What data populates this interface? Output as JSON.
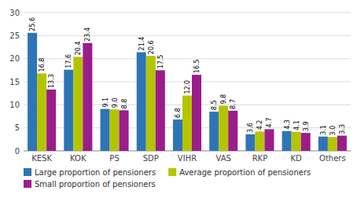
{
  "chart_data": {
    "type": "bar",
    "categories": [
      "KESK",
      "KOK",
      "PS",
      "SDP",
      "VIHR",
      "VAS",
      "RKP",
      "KD",
      "Others"
    ],
    "series": [
      {
        "name": "Large proportion of pensioners",
        "color": "#2e75b6",
        "values": [
          25.6,
          17.6,
          9.1,
          21.4,
          6.8,
          8.5,
          3.6,
          4.3,
          3.1
        ],
        "value_labels": [
          "25.6",
          "17.6",
          "9.1",
          "21.4",
          "6.8",
          "8.5",
          "3.6",
          "4.3",
          "3.1"
        ]
      },
      {
        "name": "Average proportion of pensioners",
        "color": "#b5c400",
        "values": [
          16.8,
          20.4,
          9.0,
          20.6,
          12.0,
          9.8,
          4.2,
          4.1,
          3.0
        ],
        "value_labels": [
          "16.8",
          "20.4",
          "9.0",
          "20.6",
          "12.0",
          "9.8",
          "4.2",
          "4.1",
          "3.0"
        ]
      },
      {
        "name": "Small proportion of pensioners",
        "color": "#9b1d8a",
        "values": [
          13.3,
          23.4,
          8.8,
          17.5,
          16.5,
          8.7,
          4.7,
          3.9,
          3.3
        ],
        "value_labels": [
          "13.3",
          "23.4",
          "8.8",
          "17.5",
          "16.5",
          "8.7",
          "4.7",
          "3.9",
          "3.3"
        ]
      }
    ],
    "ylim": [
      0,
      30
    ],
    "yticks": [
      0,
      5,
      10,
      15,
      20,
      25,
      30
    ],
    "grid": true,
    "data_labels": true,
    "legend": "bottom"
  }
}
